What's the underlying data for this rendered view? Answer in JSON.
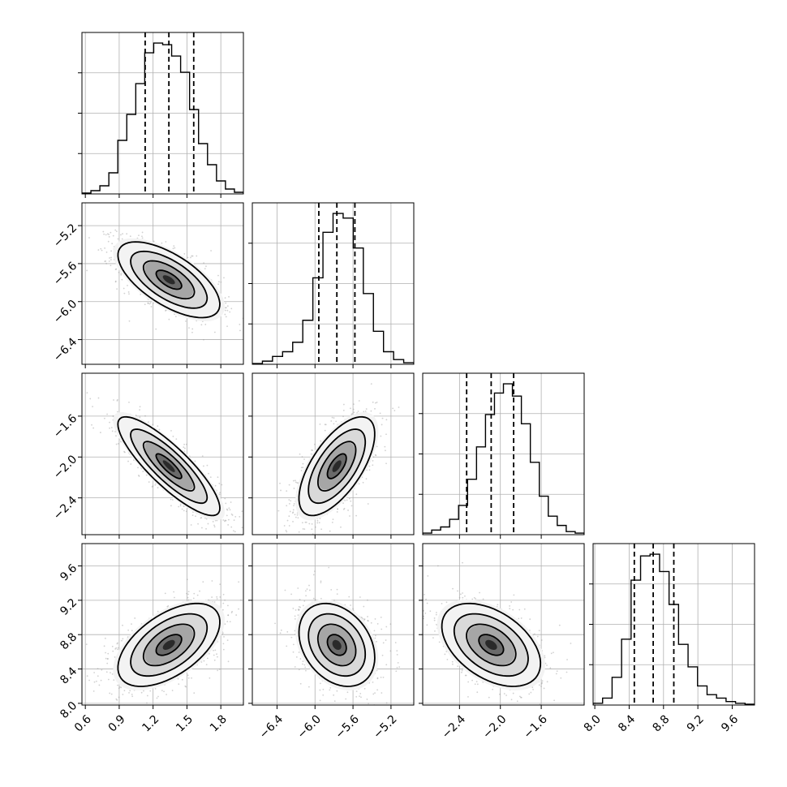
{
  "chart_data": {
    "type": "corner",
    "parameters": [
      {
        "ticks": [
          0.6,
          0.9,
          1.2,
          1.5,
          1.8
        ],
        "tick_labels": [
          "0.6",
          "0.9",
          "1.2",
          "1.5",
          "1.8"
        ],
        "range": [
          0.57,
          2.0
        ],
        "median": 1.34,
        "quantiles": [
          1.13,
          1.34,
          1.56
        ],
        "hist": [
          0.5,
          2,
          5,
          13,
          33,
          49,
          68,
          87,
          93,
          92,
          85,
          75,
          52,
          31,
          18,
          8,
          3,
          1
        ]
      },
      {
        "ticks": [
          -6.4,
          -6.0,
          -5.6,
          -5.2
        ],
        "tick_labels": [
          "−6.4",
          "−6.0",
          "−5.6",
          "−5.2"
        ],
        "range": [
          -6.66,
          -4.96
        ],
        "median": -5.77,
        "quantiles": [
          -5.96,
          -5.77,
          -5.58
        ],
        "hist": [
          0.5,
          2,
          5,
          8,
          14,
          28,
          55,
          84,
          96,
          93,
          74,
          45,
          21,
          8,
          3,
          1
        ]
      },
      {
        "ticks": [
          -2.4,
          -2.0,
          -1.6
        ],
        "tick_labels": [
          "−2.4",
          "−2.0",
          "−1.6"
        ],
        "range": [
          -2.76,
          -1.18
        ],
        "median": -2.09,
        "quantiles": [
          -2.33,
          -2.09,
          -1.87
        ],
        "hist": [
          1,
          3,
          5,
          10,
          19,
          36,
          57,
          78,
          92,
          98,
          90,
          72,
          47,
          25,
          12,
          6,
          2,
          1
        ]
      },
      {
        "ticks": [
          8.0,
          8.4,
          8.8,
          9.2,
          9.6
        ],
        "tick_labels": [
          "8.0",
          "8.4",
          "8.8",
          "9.2",
          "9.6"
        ],
        "range": [
          7.98,
          9.86
        ],
        "median": 8.68,
        "quantiles": [
          8.46,
          8.68,
          8.92
        ],
        "hist": [
          1,
          4,
          16,
          38,
          72,
          86,
          87,
          77,
          58,
          35,
          22,
          11,
          6,
          4,
          2,
          1,
          0.5
        ]
      }
    ],
    "correlations": [
      [
        1.0,
        -0.65,
        -0.85,
        0.55
      ],
      [
        -0.65,
        1.0,
        0.65,
        -0.3
      ],
      [
        -0.85,
        0.65,
        1.0,
        -0.45
      ],
      [
        0.55,
        -0.3,
        -0.45,
        1.0
      ]
    ],
    "contour_levels_sigma": [
      0.5,
      1.0,
      1.5,
      2.0
    ],
    "grid": true
  }
}
